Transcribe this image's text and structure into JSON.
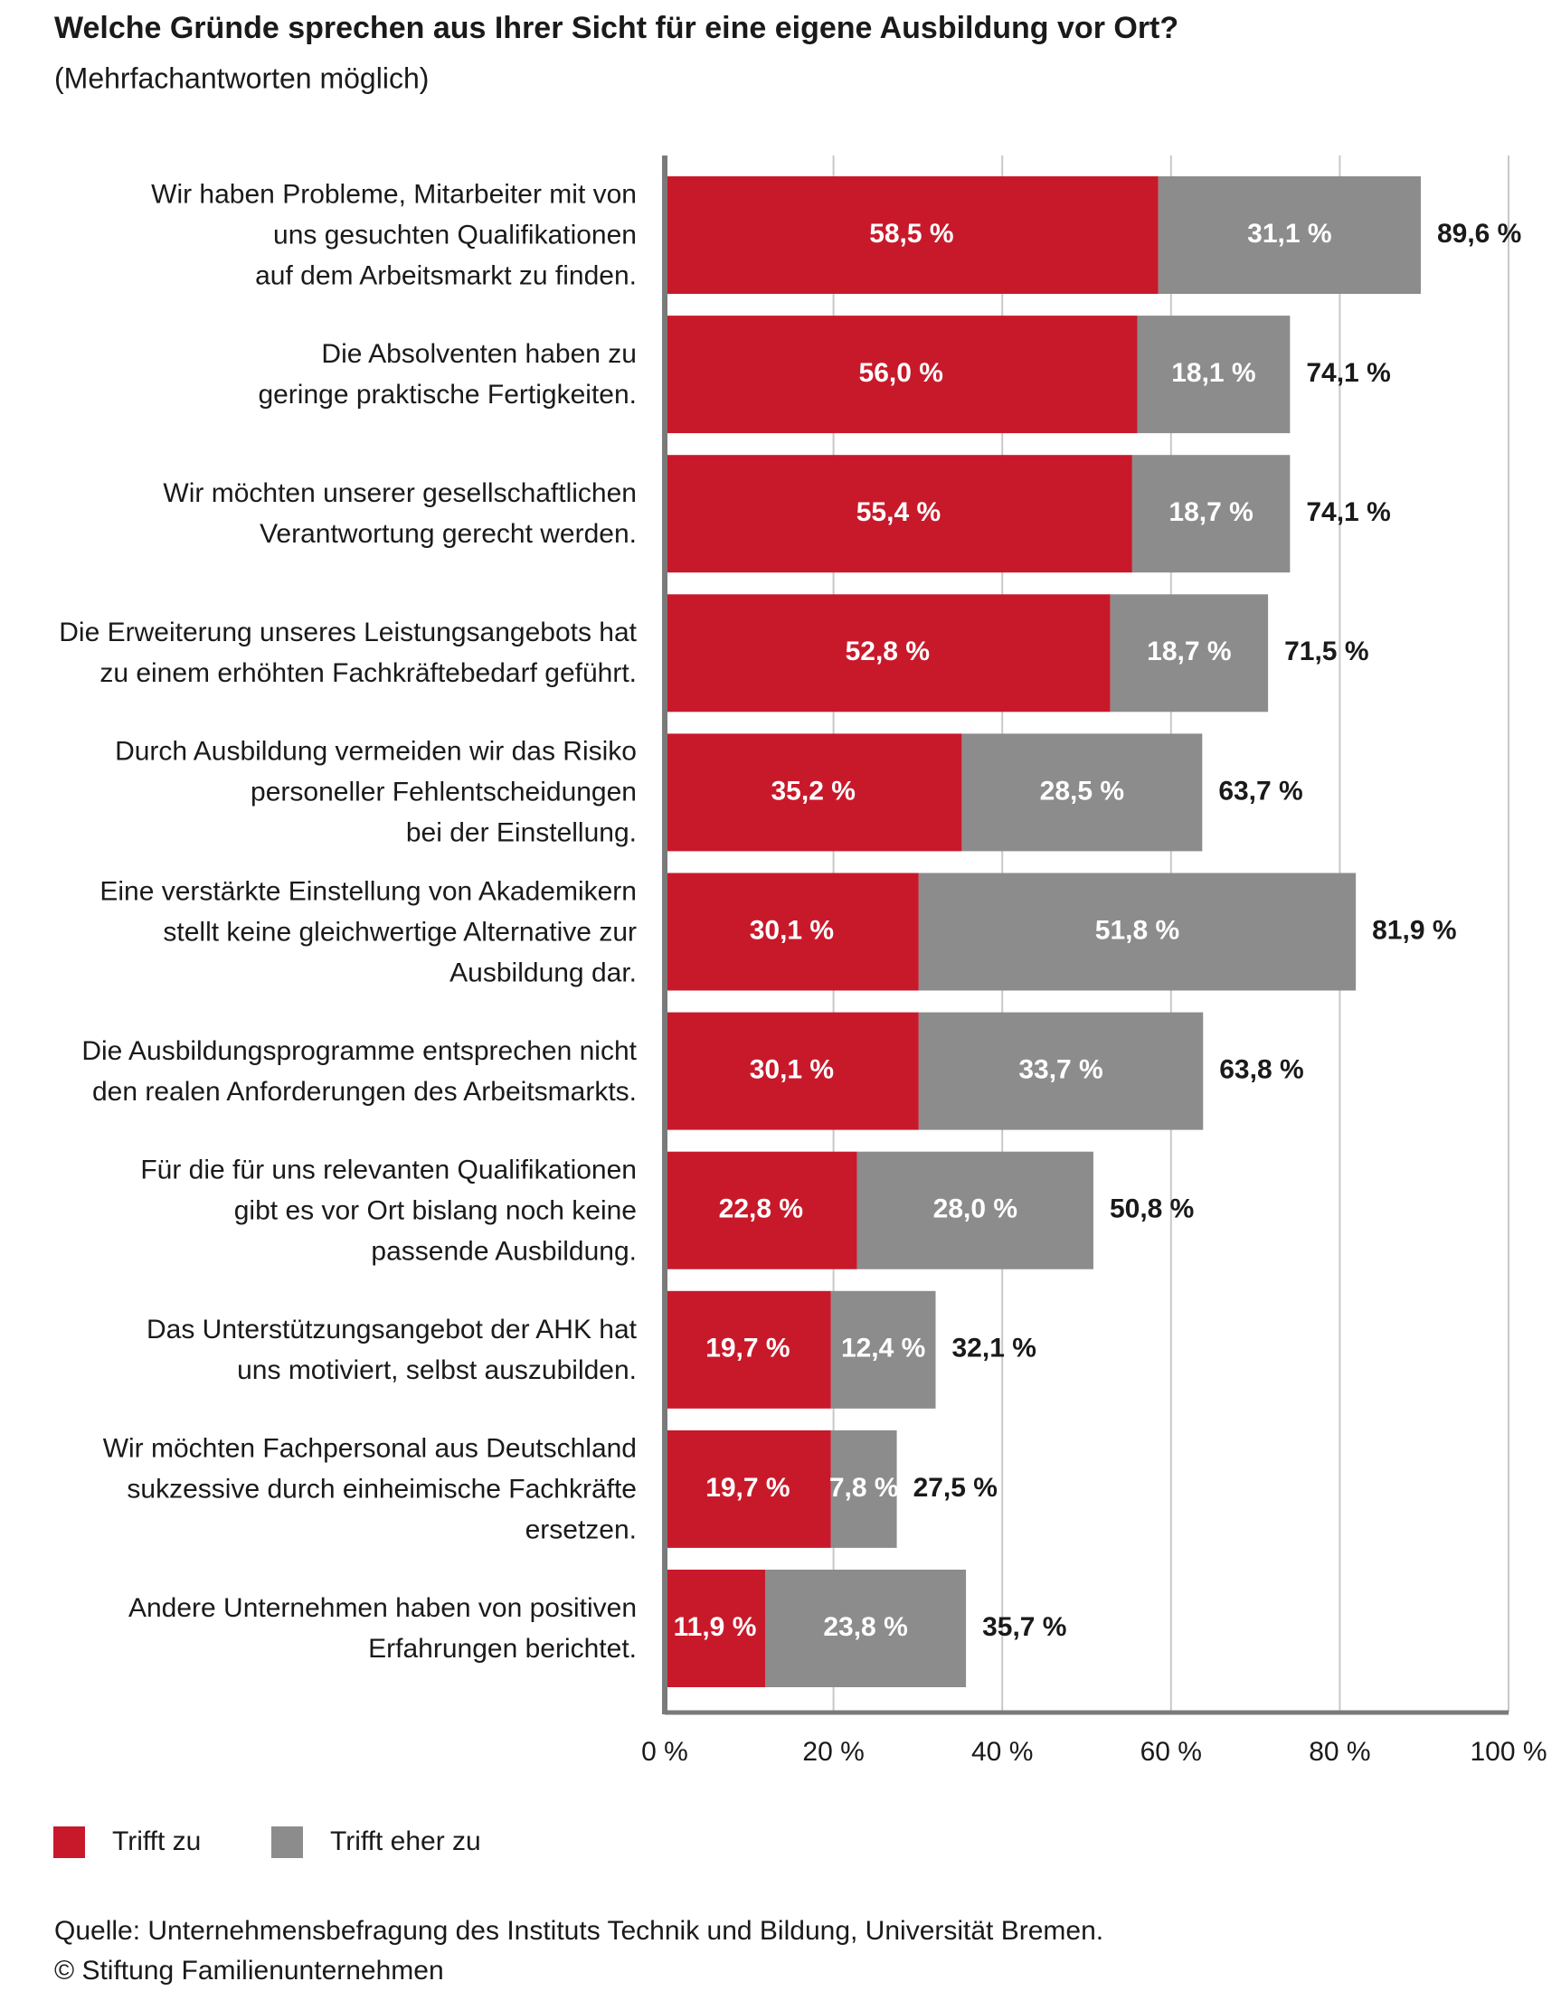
{
  "chart_data": {
    "type": "stacked-barh",
    "title": "Welche Gründe sprechen aus Ihrer Sicht für eine eigene Ausbildung vor Ort?",
    "subtitle": "(Mehrfachantworten möglich)",
    "categories": [
      "Wir haben Probleme, Mitarbeiter mit von\nuns gesuchten Qualifikationen\nauf dem Arbeitsmarkt zu finden.",
      "Die Absolventen haben zu\ngeringe praktische Fertigkeiten.",
      "Wir möchten unserer gesellschaftlichen\nVerantwortung gerecht werden.",
      "Die Erweiterung unseres Leistungsangebots hat\nzu einem erhöhten Fachkräftebedarf geführt.",
      "Durch Ausbildung vermeiden wir das Risiko\npersoneller Fehlentscheidungen\nbei der Einstellung.",
      "Eine verstärkte Einstellung von Akademikern\nstellt keine gleichwertige Alternative zur\nAusbildung dar.",
      "Die Ausbildungsprogramme entsprechen nicht\nden realen Anforderungen des Arbeitsmarkts.",
      "Für die für uns relevanten Qualifikationen\ngibt es vor Ort bislang noch keine\npassende Ausbildung.",
      "Das Unterstützungsangebot der AHK hat\nuns motiviert, selbst auszubilden.",
      "Wir möchten Fachpersonal aus Deutschland\nsukzessive durch einheimische Fachkräfte\nersetzen.",
      "Andere Unternehmen haben von positiven\nErfahrungen berichtet."
    ],
    "series": [
      {
        "name": "Trifft zu",
        "color": "#c8192b",
        "values": [
          58.5,
          56.0,
          55.4,
          52.8,
          35.2,
          30.1,
          30.1,
          22.8,
          19.7,
          19.7,
          11.9
        ],
        "value_labels": [
          "58,5 %",
          "56,0 %",
          "55,4 %",
          "52,8 %",
          "35,2 %",
          "30,1 %",
          "30,1 %",
          "22,8 %",
          "19,7 %",
          "19,7 %",
          "11,9 %"
        ]
      },
      {
        "name": "Trifft eher zu",
        "color": "#8c8c8c",
        "values": [
          31.1,
          18.1,
          18.7,
          18.7,
          28.5,
          51.8,
          33.7,
          28.0,
          12.4,
          7.8,
          23.8
        ],
        "value_labels": [
          "31,1 %",
          "18,1 %",
          "18,7 %",
          "18,7 %",
          "28,5 %",
          "51,8 %",
          "33,7 %",
          "28,0 %",
          "12,4 %",
          "7,8 %",
          "23,8 %"
        ]
      }
    ],
    "totals": {
      "values": [
        89.6,
        74.1,
        74.1,
        71.5,
        63.7,
        81.9,
        63.8,
        50.8,
        32.1,
        27.5,
        35.7
      ],
      "value_labels": [
        "89,6 %",
        "74,1 %",
        "74,1 %",
        "71,5 %",
        "63,7 %",
        "81,9 %",
        "63,8 %",
        "50,8 %",
        "32,1 %",
        "27,5 %",
        "35,7 %"
      ]
    },
    "xlim": [
      0,
      100
    ],
    "xticks": [
      {
        "value": 0,
        "label": "0 %"
      },
      {
        "value": 20,
        "label": "20 %"
      },
      {
        "value": 40,
        "label": "40 %"
      },
      {
        "value": 60,
        "label": "60 %"
      },
      {
        "value": 80,
        "label": "80 %"
      },
      {
        "value": 100,
        "label": "100 %"
      }
    ],
    "grid": true,
    "source": "Quelle: Unternehmensbefragung des Instituts Technik und Bildung, Universität Bremen.",
    "copyright": "© Stiftung Familienunternehmen"
  }
}
